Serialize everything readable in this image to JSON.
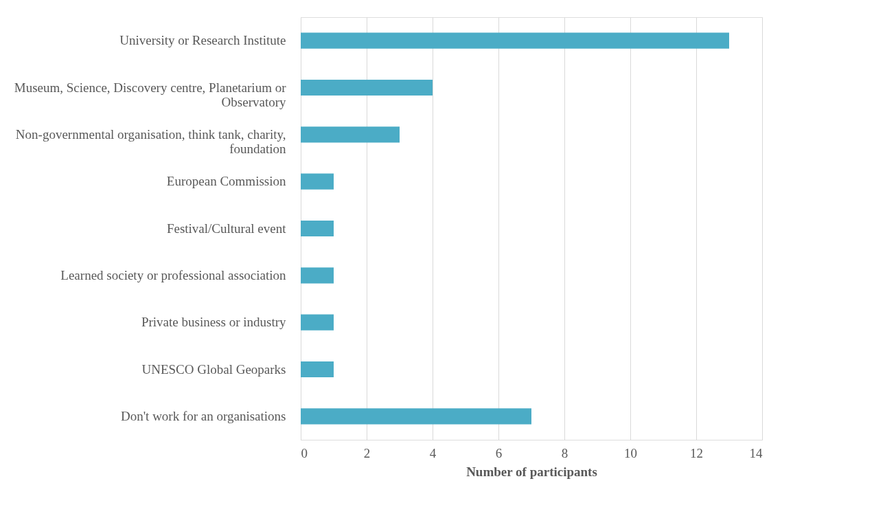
{
  "chart_data": {
    "type": "bar",
    "orientation": "horizontal",
    "xlabel": "Number of participants",
    "categories": [
      "University or Research Institute",
      "Museum, Science, Discovery centre, Planetarium or Observatory",
      "Non-governmental organisation, think tank, charity, foundation",
      "European Commission",
      "Festival/Cultural event",
      "Learned society or professional association",
      "Private business or industry",
      "UNESCO Global Geoparks",
      "Don't work for an organisations"
    ],
    "values": [
      13,
      4,
      3,
      1,
      1,
      1,
      1,
      1,
      7
    ],
    "color": "#4bacc6",
    "xlim": [
      0,
      14
    ],
    "xticks": [
      0,
      2,
      4,
      6,
      8,
      10,
      12,
      14
    ],
    "grid": "x"
  }
}
